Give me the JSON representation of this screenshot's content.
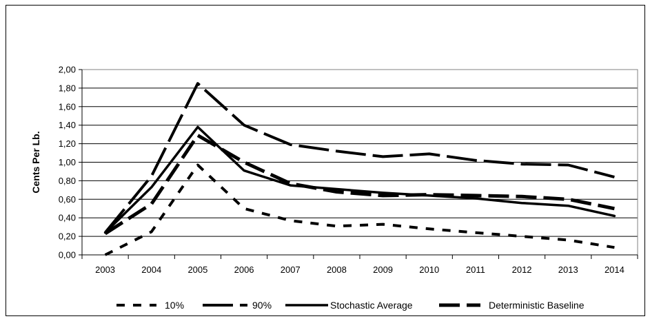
{
  "chart_data": {
    "type": "line",
    "title": "",
    "xlabel": "",
    "ylabel": "Cents Per Lb.",
    "categories": [
      "2003",
      "2004",
      "2005",
      "2006",
      "2007",
      "2008",
      "2009",
      "2010",
      "2011",
      "2012",
      "2013",
      "2014"
    ],
    "ylim": [
      0,
      2.0
    ],
    "yticks": [
      "0,00",
      "0,20",
      "0,40",
      "0,60",
      "0,80",
      "1,00",
      "1,20",
      "1,40",
      "1,60",
      "1,80",
      "2,00"
    ],
    "grid": true,
    "legend_position": "bottom",
    "series": [
      {
        "name": "10%",
        "style": "short-dash",
        "values": [
          0.0,
          0.25,
          0.97,
          0.5,
          0.37,
          0.31,
          0.33,
          0.28,
          0.24,
          0.2,
          0.16,
          0.08
        ]
      },
      {
        "name": "90%",
        "style": "long-dash",
        "values": [
          0.24,
          0.85,
          1.85,
          1.4,
          1.19,
          1.12,
          1.06,
          1.09,
          1.02,
          0.98,
          0.97,
          0.84
        ]
      },
      {
        "name": "Stochastic Average",
        "style": "solid",
        "values": [
          0.24,
          0.73,
          1.38,
          0.91,
          0.75,
          0.71,
          0.67,
          0.64,
          0.61,
          0.56,
          0.53,
          0.42
        ]
      },
      {
        "name": "Deterministic Baseline",
        "style": "mid-dash",
        "values": [
          0.23,
          0.55,
          1.29,
          1.0,
          0.77,
          0.68,
          0.64,
          0.65,
          0.64,
          0.63,
          0.6,
          0.5
        ]
      }
    ]
  }
}
